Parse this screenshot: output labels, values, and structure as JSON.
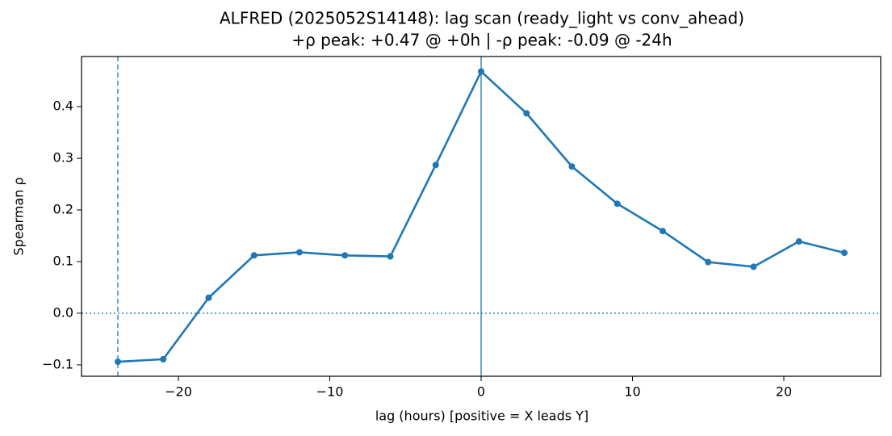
{
  "chart_data": {
    "type": "line",
    "title": "ALFRED (2025052S14148): lag scan (ready_light vs conv_ahead)",
    "subtitle": "+ρ peak: +0.47 @ +0h | -ρ peak: -0.09 @ -24h",
    "x_label": "lag (hours) [positive = X leads Y]",
    "y_label": "Spearman ρ",
    "x": [
      -24,
      -21,
      -18,
      -15,
      -12,
      -9,
      -6,
      -3,
      0,
      3,
      6,
      9,
      12,
      15,
      18,
      21,
      24
    ],
    "values": [
      -0.094,
      -0.089,
      0.03,
      0.112,
      0.118,
      0.112,
      0.11,
      0.287,
      0.468,
      0.387,
      0.284,
      0.212,
      0.159,
      0.099,
      0.09,
      0.139,
      0.117
    ],
    "color": "#1f77b4",
    "xlim": [
      -26.4,
      26.4
    ],
    "ylim": [
      -0.122,
      0.497
    ],
    "xticks": [
      {
        "value": -20,
        "label": "−20"
      },
      {
        "value": -10,
        "label": "−10"
      },
      0,
      10,
      20
    ],
    "yticks": [
      {
        "value": -0.1,
        "label": "−0.1"
      },
      {
        "value": 0,
        "label": "0.0"
      },
      0.1,
      0.2,
      0.3,
      0.4
    ],
    "vlines": [
      {
        "x": 0,
        "style": "solid"
      },
      {
        "x": -24,
        "style": "dashed"
      }
    ],
    "hlines": [
      {
        "y": 0,
        "style": "dotted"
      }
    ],
    "grid": false
  }
}
